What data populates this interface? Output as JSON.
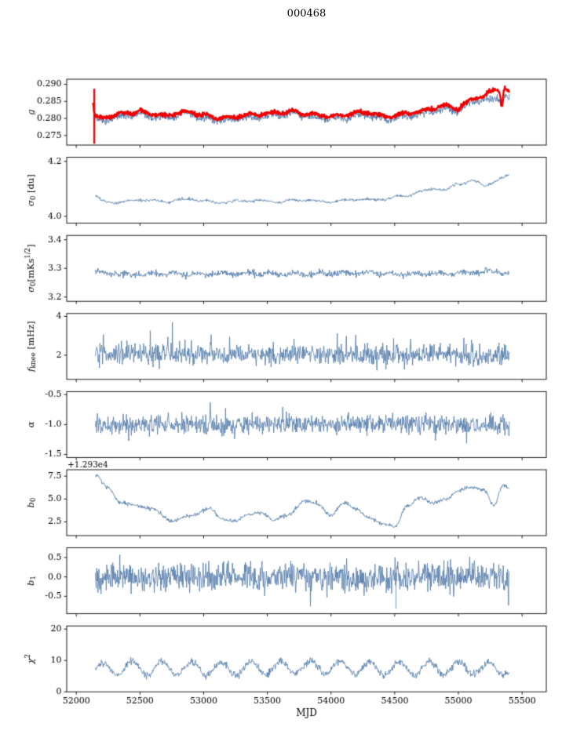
{
  "chart_data": {
    "type": "line",
    "title": "000468",
    "xlabel": "MJD",
    "xlim": [
      51925,
      55690
    ],
    "x_ticks": {
      "values": [
        52000,
        52500,
        53000,
        53500,
        54000,
        54500,
        55000,
        55500
      ],
      "labels": [
        "52000",
        "52500",
        "53000",
        "53500",
        "54000",
        "54500",
        "55000",
        "55500"
      ]
    },
    "colors": {
      "line_blue": "#5079a8",
      "line_red": "#ee0000",
      "axis": "#000000"
    },
    "panels": [
      {
        "name": "gain",
        "ylabel": [
          {
            "text": "g",
            "italic": true
          }
        ],
        "ylim": [
          0.2722,
          0.2915
        ],
        "yticks": {
          "values": [
            0.275,
            0.28,
            0.285,
            0.29
          ],
          "labels": [
            "0.275",
            "0.280",
            "0.285",
            "0.290"
          ]
        },
        "series": [
          {
            "name": "g raw",
            "color": "#5079a8",
            "linewidth": 0.9,
            "n": 1100,
            "x_start": 52130,
            "x_end": 55400,
            "noise": 0.0006,
            "wave": {
              "period": 170,
              "amp": 0.00045
            },
            "trend_x": [
              52130,
              52145,
              52165,
              52200,
              52300,
              52400,
              52500,
              52600,
              52700,
              52800,
              52900,
              53000,
              53100,
              53200,
              53300,
              53400,
              53500,
              53600,
              53700,
              53800,
              53900,
              54000,
              54100,
              54200,
              54300,
              54400,
              54500,
              54600,
              54700,
              54800,
              54900,
              55000,
              55050,
              55100,
              55150,
              55200,
              55250,
              55300,
              55340,
              55370,
              55400
            ],
            "trend_y": [
              0.2836,
              0.2799,
              0.2791,
              0.2794,
              0.2801,
              0.2809,
              0.2812,
              0.2806,
              0.2799,
              0.2809,
              0.2812,
              0.28,
              0.2796,
              0.2794,
              0.2801,
              0.2803,
              0.2806,
              0.2811,
              0.2812,
              0.2807,
              0.2801,
              0.2799,
              0.2802,
              0.2808,
              0.281,
              0.2797,
              0.2801,
              0.2808,
              0.2812,
              0.2822,
              0.2828,
              0.2822,
              0.2832,
              0.2846,
              0.2851,
              0.2852,
              0.2849,
              0.286,
              0.2853,
              0.2863,
              0.2856
            ]
          },
          {
            "name": "g smoothed",
            "color": "#ee0000",
            "linewidth": 2.4,
            "n": 1100,
            "x_start": 52130,
            "x_end": 55400,
            "noise": 0.00035,
            "wave": {
              "period": 170,
              "amp": 0.0004
            },
            "vspike": {
              "x": 52141,
              "y0": 0.2726,
              "y1": 0.2887
            },
            "trend_x": [
              52130,
              52145,
              52165,
              52200,
              52300,
              52400,
              52500,
              52600,
              52700,
              52800,
              52900,
              53000,
              53100,
              53200,
              53300,
              53400,
              53500,
              53600,
              53700,
              53800,
              53900,
              54000,
              54100,
              54200,
              54300,
              54400,
              54500,
              54600,
              54700,
              54800,
              54900,
              55000,
              55050,
              55100,
              55150,
              55200,
              55250,
              55290,
              55320,
              55340,
              55360,
              55400
            ],
            "trend_y": [
              0.2844,
              0.2807,
              0.2799,
              0.2802,
              0.2809,
              0.2817,
              0.282,
              0.2814,
              0.2807,
              0.2817,
              0.282,
              0.2808,
              0.2804,
              0.2802,
              0.2809,
              0.2811,
              0.2814,
              0.2819,
              0.282,
              0.2815,
              0.2809,
              0.2807,
              0.281,
              0.2816,
              0.2818,
              0.2805,
              0.2809,
              0.2816,
              0.282,
              0.283,
              0.2836,
              0.283,
              0.284,
              0.2856,
              0.2862,
              0.2864,
              0.2876,
              0.2886,
              0.2882,
              0.2838,
              0.2888,
              0.2874
            ]
          }
        ]
      },
      {
        "name": "sigma0-du",
        "ylabel": [
          {
            "text": "σ",
            "italic": true
          },
          {
            "text": "0",
            "script": "sub"
          },
          {
            "text": " [du]"
          }
        ],
        "ylim": [
          3.975,
          4.215
        ],
        "yticks": {
          "values": [
            4.0,
            4.2
          ],
          "labels": [
            "4.0",
            "4.2"
          ]
        },
        "series": [
          {
            "name": "sigma0 du",
            "color": "#5079a8",
            "linewidth": 0.9,
            "n": 750,
            "x_start": 52150,
            "x_end": 55400,
            "noise": 0.003,
            "wave": {
              "period": 210,
              "amp": 0.0025
            },
            "trend_x": [
              52150,
              52200,
              52300,
              52400,
              52500,
              52600,
              52700,
              52800,
              52900,
              53000,
              53100,
              53200,
              53300,
              53400,
              53500,
              53600,
              53700,
              53800,
              53900,
              54000,
              54100,
              54200,
              54300,
              54400,
              54500,
              54600,
              54700,
              54800,
              54900,
              55000,
              55100,
              55150,
              55200,
              55250,
              55300,
              55350,
              55400
            ],
            "trend_y": [
              4.075,
              4.056,
              4.05,
              4.055,
              4.06,
              4.058,
              4.052,
              4.06,
              4.062,
              4.055,
              4.05,
              4.052,
              4.056,
              4.058,
              4.055,
              4.052,
              4.058,
              4.06,
              4.055,
              4.052,
              4.058,
              4.062,
              4.06,
              4.062,
              4.07,
              4.075,
              4.09,
              4.1,
              4.095,
              4.118,
              4.13,
              4.125,
              4.11,
              4.118,
              4.128,
              4.14,
              4.15
            ]
          }
        ]
      },
      {
        "name": "sigma0-mK",
        "ylabel": [
          {
            "text": "σ",
            "italic": true
          },
          {
            "text": "0",
            "script": "sub"
          },
          {
            "text": "[mKs"
          },
          {
            "text": "1/2",
            "script": "sup"
          },
          {
            "text": "]"
          }
        ],
        "ylim": [
          3.185,
          3.415
        ],
        "yticks": {
          "values": [
            3.2,
            3.3,
            3.4
          ],
          "labels": [
            "3.2",
            "3.3",
            "3.4"
          ]
        },
        "series": [
          {
            "name": "sigma0 mK",
            "color": "#5079a8",
            "linewidth": 0.9,
            "n": 820,
            "x_start": 52150,
            "x_end": 55400,
            "noise": 0.0065,
            "wave": {
              "period": 190,
              "amp": 0.004
            },
            "trend_x": [
              52150,
              52400,
              52700,
              53000,
              53300,
              53600,
              53900,
              54200,
              54500,
              54800,
              55100,
              55250,
              55400
            ],
            "trend_y": [
              3.287,
              3.278,
              3.281,
              3.279,
              3.283,
              3.28,
              3.282,
              3.284,
              3.279,
              3.282,
              3.285,
              3.29,
              3.282
            ]
          }
        ]
      },
      {
        "name": "fknee",
        "ylabel": [
          {
            "text": "f",
            "italic": true
          },
          {
            "text": "knee",
            "script": "sub"
          },
          {
            "text": " [mHz]"
          }
        ],
        "ylim": [
          0.75,
          4.15
        ],
        "yticks": {
          "values": [
            2,
            4
          ],
          "labels": [
            "2",
            "4"
          ]
        },
        "series": [
          {
            "name": "f knee",
            "color": "#5079a8",
            "linewidth": 0.8,
            "n": 920,
            "x_start": 52150,
            "x_end": 55400,
            "noise": 0.3,
            "spike_prob": 0.05,
            "spike_amp": 1.0,
            "spike_bias": 0.35,
            "trend_x": [
              52150,
              55400
            ],
            "trend_y": [
              2.05,
              2.0
            ]
          }
        ]
      },
      {
        "name": "alpha",
        "ylabel": [
          {
            "text": "α",
            "italic": true
          }
        ],
        "ylim": [
          -1.55,
          -0.45
        ],
        "yticks": {
          "values": [
            -0.5,
            -1.0,
            -1.5
          ],
          "labels": [
            "-0.5",
            "-1.0",
            "-1.5"
          ]
        },
        "series": [
          {
            "name": "alpha",
            "color": "#5079a8",
            "linewidth": 0.8,
            "n": 920,
            "x_start": 52150,
            "x_end": 55400,
            "noise": 0.09,
            "spike_prob": 0.05,
            "spike_amp": 0.3,
            "trend_x": [
              52150,
              55400
            ],
            "trend_y": [
              -1.0,
              -1.0
            ]
          }
        ]
      },
      {
        "name": "b0",
        "offset_text": "+1.293e4",
        "ylabel": [
          {
            "text": "b",
            "italic": true
          },
          {
            "text": "0",
            "script": "sub"
          }
        ],
        "ylim": [
          1.0,
          8.2
        ],
        "yticks": {
          "values": [
            2.5,
            5.0,
            7.5
          ],
          "labels": [
            "2.5",
            "5.0",
            "7.5"
          ]
        },
        "series": [
          {
            "name": "b0",
            "color": "#5079a8",
            "linewidth": 0.9,
            "n": 820,
            "x_start": 52150,
            "x_end": 55400,
            "noise": 0.12,
            "spike_prob": 0.01,
            "spike_amp": 0.3,
            "trend_x": [
              52150,
              52250,
              52350,
              52500,
              52600,
              52750,
              52900,
              53050,
              53150,
              53250,
              53350,
              53450,
              53550,
              53650,
              53800,
              53900,
              54000,
              54100,
              54200,
              54300,
              54400,
              54500,
              54600,
              54700,
              54800,
              54900,
              55000,
              55100,
              55200,
              55280,
              55350,
              55400
            ],
            "trend_y": [
              7.6,
              6.2,
              4.6,
              4.2,
              3.9,
              2.6,
              3.2,
              3.9,
              2.8,
              2.6,
              3.3,
              3.5,
              2.7,
              3.2,
              4.8,
              4.4,
              3.2,
              4.6,
              3.9,
              2.9,
              2.3,
              2.0,
              4.3,
              5.2,
              4.6,
              5.0,
              5.9,
              6.3,
              6.0,
              4.3,
              6.5,
              6.2
            ]
          }
        ]
      },
      {
        "name": "b1",
        "ylabel": [
          {
            "text": "b",
            "italic": true
          },
          {
            "text": "1",
            "script": "sub"
          }
        ],
        "ylim": [
          -0.95,
          0.75
        ],
        "yticks": {
          "values": [
            -0.5,
            0.0,
            0.5
          ],
          "labels": [
            "-0.5",
            "0.0",
            "0.5"
          ]
        },
        "series": [
          {
            "name": "b1",
            "color": "#5079a8",
            "linewidth": 0.8,
            "n": 950,
            "x_start": 52150,
            "x_end": 55400,
            "noise": 0.2,
            "spike_prob": 0.05,
            "spike_amp": 0.45,
            "vspike": {
              "x": 54510,
              "y0": -0.05,
              "y1": -0.82
            },
            "trend_x": [
              52150,
              55400
            ],
            "trend_y": [
              0.0,
              0.0
            ]
          }
        ]
      },
      {
        "name": "chi2",
        "ylabel": [
          {
            "text": "χ",
            "italic": true
          },
          {
            "text": "2",
            "script": "sup"
          }
        ],
        "ylim": [
          0,
          21
        ],
        "yticks": {
          "values": [
            0,
            10,
            20
          ],
          "labels": [
            "0",
            "10",
            "20"
          ]
        },
        "series": [
          {
            "name": "chi2",
            "color": "#5079a8",
            "linewidth": 0.8,
            "n": 900,
            "x_start": 52150,
            "x_end": 55400,
            "noise": 0.65,
            "wave": {
              "period": 233,
              "amp": 2.1
            },
            "trend_x": [
              52150,
              52400,
              53000,
              53500,
              54000,
              54500,
              55000,
              55400
            ],
            "trend_y": [
              7.0,
              7.6,
              7.4,
              7.6,
              7.8,
              7.3,
              7.6,
              7.4
            ]
          }
        ]
      }
    ]
  }
}
